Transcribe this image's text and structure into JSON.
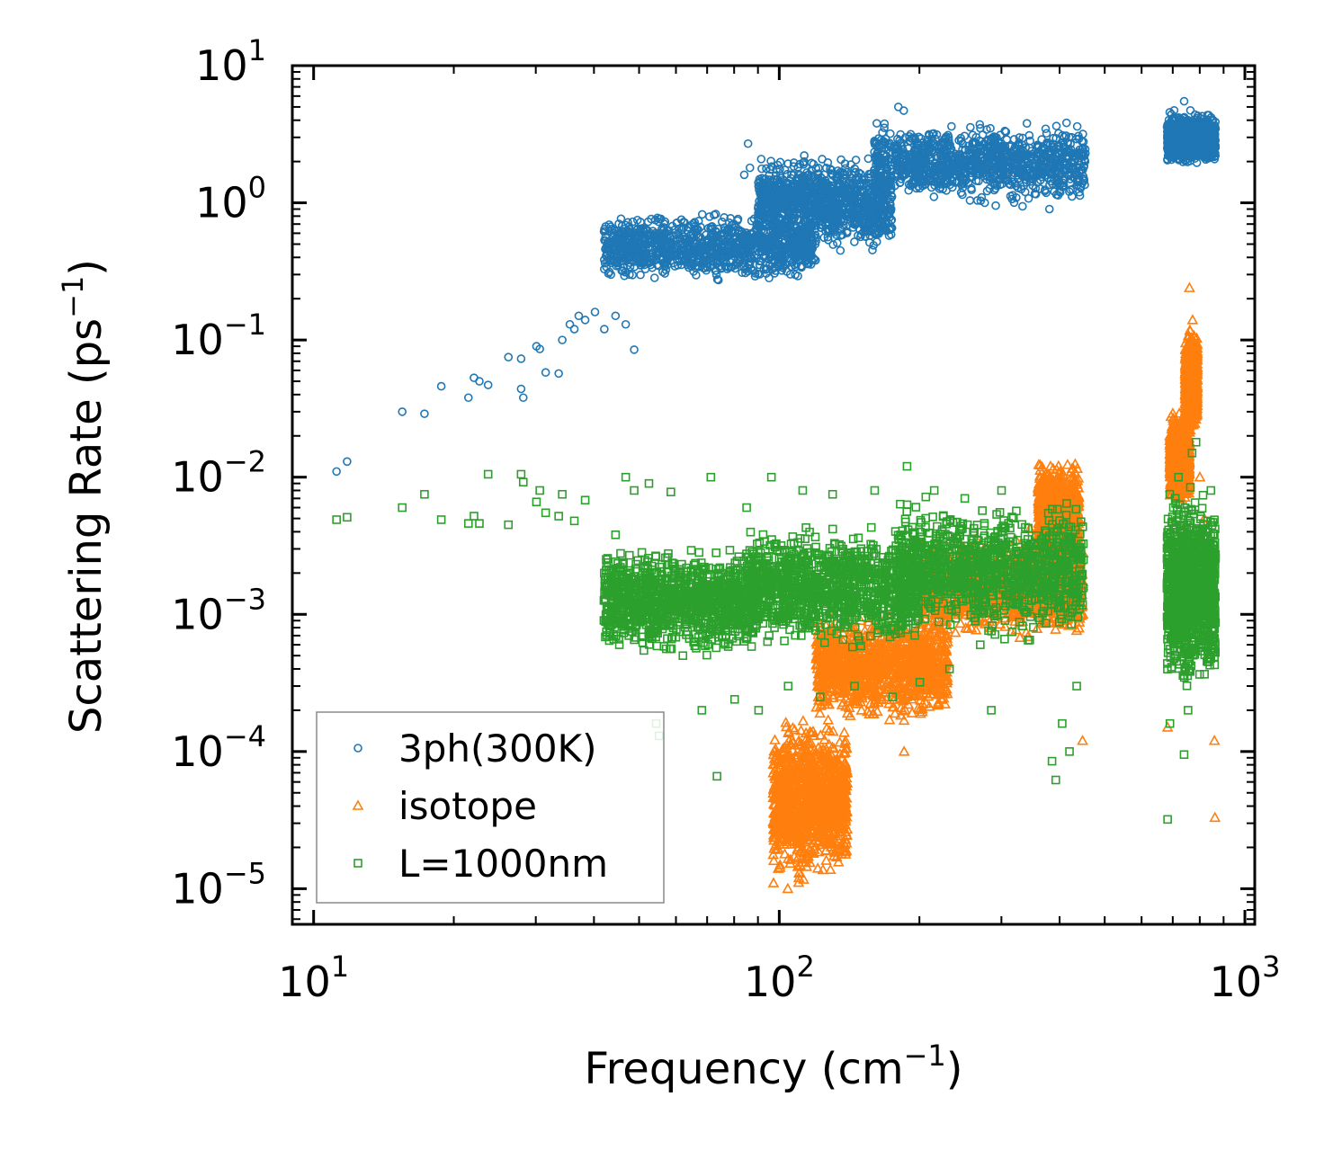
{
  "chart_data": {
    "type": "scatter",
    "xscale": "log",
    "yscale": "log",
    "xlim": [
      9,
      1050
    ],
    "ylim": [
      5.5e-06,
      10
    ],
    "xlabel": "Frequency (cm",
    "xlabel_sup": "−1",
    "xlabel_end": ")",
    "ylabel": "Scattering Rate (ps",
    "ylabel_sup": "−1",
    "ylabel_end": ")",
    "x_ticks": [
      {
        "value": 10,
        "base": "10",
        "exp": "1"
      },
      {
        "value": 100,
        "base": "10",
        "exp": "2"
      },
      {
        "value": 1000,
        "base": "10",
        "exp": "3"
      }
    ],
    "y_ticks": [
      {
        "value": 10,
        "base": "10",
        "exp": "1"
      },
      {
        "value": 1,
        "base": "10",
        "exp": "0"
      },
      {
        "value": 0.1,
        "base": "10",
        "exp": "−1"
      },
      {
        "value": 0.01,
        "base": "10",
        "exp": "−2"
      },
      {
        "value": 0.001,
        "base": "10",
        "exp": "−3"
      },
      {
        "value": 0.0001,
        "base": "10",
        "exp": "−4"
      },
      {
        "value": 1e-05,
        "base": "10",
        "exp": "−5"
      }
    ],
    "legend_position": "lower-left",
    "series": [
      {
        "name": "3ph(300K)",
        "color": "#1f77b4",
        "marker": "circle",
        "points": [
          [
            11.2,
            0.011
          ],
          [
            11.8,
            0.013
          ],
          [
            15.5,
            0.03
          ],
          [
            17.3,
            0.029
          ],
          [
            18.8,
            0.046
          ],
          [
            21.5,
            0.038
          ],
          [
            22.1,
            0.053
          ],
          [
            22.7,
            0.05
          ],
          [
            23.7,
            0.047
          ],
          [
            26.2,
            0.075
          ],
          [
            27.9,
            0.044
          ],
          [
            28.2,
            0.038
          ],
          [
            27.9,
            0.073
          ],
          [
            30.6,
            0.086
          ],
          [
            31.5,
            0.058
          ],
          [
            30.1,
            0.09
          ],
          [
            33.6,
            0.057
          ],
          [
            34.2,
            0.1
          ],
          [
            35.5,
            0.13
          ],
          [
            36.3,
            0.12
          ],
          [
            37.1,
            0.15
          ],
          [
            38.3,
            0.14
          ],
          [
            40.2,
            0.16
          ],
          [
            42.1,
            0.12
          ],
          [
            44.5,
            0.15
          ],
          [
            46.8,
            0.13
          ],
          [
            48.8,
            0.085
          ],
          [
            42.3,
            0.62
          ],
          [
            44.1,
            0.6
          ],
          [
            46.5,
            0.62
          ],
          [
            49.5,
            0.58
          ],
          [
            43.5,
            0.3
          ],
          [
            47.2,
            0.35
          ],
          [
            51.5,
            0.4
          ],
          [
            56.1,
            0.45
          ],
          [
            61.3,
            0.5
          ],
          [
            65.8,
            0.42
          ],
          [
            72.5,
            0.55
          ],
          [
            76.2,
            0.38
          ],
          [
            79.3,
            0.6
          ],
          [
            84.1,
            1.6
          ],
          [
            86.5,
            1.8
          ],
          [
            85.7,
            2.7
          ],
          [
            90.2,
            1.4
          ],
          [
            95.3,
            0.9
          ],
          [
            98.1,
            0.32
          ],
          [
            105.4,
            1.2
          ],
          [
            112.3,
            1.5
          ],
          [
            120.1,
            1.3
          ],
          [
            130.2,
            1.6
          ],
          [
            142.5,
            1.9
          ],
          [
            155.3,
            2.1
          ],
          [
            168.5,
            2.5
          ],
          [
            180.2,
            5.0
          ],
          [
            185.1,
            4.7
          ],
          [
            195.3,
            3.0
          ],
          [
            210.2,
            2.5
          ],
          [
            225.7,
            2.3
          ],
          [
            240.3,
            2.0
          ],
          [
            255.1,
            2.6
          ],
          [
            270.3,
            3.5
          ],
          [
            285.2,
            2.2
          ],
          [
            300.1,
            2.1
          ],
          [
            320.4,
            2.4
          ],
          [
            340.2,
            2.2
          ],
          [
            360.5,
            2.6
          ],
          [
            380.4,
            0.9
          ],
          [
            395.2,
            1.8
          ],
          [
            410.3,
            1.5
          ],
          [
            425.1,
            2.0
          ],
          [
            440.2,
            2.3
          ],
          [
            452.1,
            2.2
          ],
          [
            682.1,
            2.8
          ],
          [
            700.3,
            3.2
          ],
          [
            715.2,
            2.5
          ],
          [
            740.5,
            5.5
          ],
          [
            755.3,
            4.0
          ],
          [
            770.2,
            3.2
          ],
          [
            790.1,
            2.6
          ],
          [
            820.4,
            3.5
          ],
          [
            845.2,
            3.0
          ],
          [
            862.3,
            2.3
          ]
        ],
        "bands": [
          {
            "x": [
              42,
              120
            ],
            "y": [
              0.25,
              0.9
            ]
          },
          {
            "x": [
              90,
              175
            ],
            "y": [
              0.4,
              2.5
            ]
          },
          {
            "x": [
              160,
              455
            ],
            "y": [
              0.9,
              4.2
            ]
          },
          {
            "x": [
              680,
              865
            ],
            "y": [
              1.8,
              4.8
            ]
          }
        ]
      },
      {
        "name": "isotope",
        "color": "#ff7f0e",
        "marker": "triangle",
        "points": [
          [
            97.2,
            1.1e-05
          ],
          [
            99.5,
            1.4e-05
          ],
          [
            101.3,
            2.2e-05
          ],
          [
            103.1,
            3.1e-05
          ],
          [
            105.6,
            4.4e-05
          ],
          [
            108.2,
            6.2e-05
          ],
          [
            111.3,
            8.1e-05
          ],
          [
            114.5,
            0.0001
          ],
          [
            118.2,
            0.00014
          ],
          [
            122.3,
            0.00019
          ],
          [
            126.5,
            0.00025
          ],
          [
            131.2,
            0.00033
          ],
          [
            136.4,
            0.00041
          ],
          [
            142.3,
            0.0005
          ],
          [
            148.6,
            0.00062
          ],
          [
            155.3,
            0.0007
          ],
          [
            162.1,
            0.00085
          ],
          [
            170.2,
            0.001
          ],
          [
            178.4,
            0.0012
          ],
          [
            188.3,
            0.0013
          ],
          [
            198.2,
            0.0015
          ],
          [
            212.4,
            0.0018
          ],
          [
            228.3,
            0.0021
          ],
          [
            245.5,
            0.0024
          ],
          [
            262.1,
            0.0026
          ],
          [
            280.2,
            0.0028
          ],
          [
            300.5,
            0.0031
          ],
          [
            322.1,
            0.0035
          ],
          [
            345.2,
            0.0042
          ],
          [
            365.3,
            0.006
          ],
          [
            382.4,
            0.012
          ],
          [
            396.1,
            0.008
          ],
          [
            412.3,
            0.0055
          ],
          [
            430.2,
            0.002
          ],
          [
            448.1,
            0.00012
          ],
          [
            185.4,
            0.0001
          ],
          [
            172.5,
            0.00017
          ],
          [
            150.2,
            0.0002
          ],
          [
            140.1,
            0.00019
          ],
          [
            130.5,
            0.00014
          ],
          [
            126.2,
            3.8e-05
          ],
          [
            123.2,
            2.8e-05
          ],
          [
            116.2,
            1.9e-05
          ],
          [
            110.2,
            1.2e-05
          ],
          [
            104.3,
            1e-05
          ],
          [
            682.3,
            0.00015
          ],
          [
            695.2,
            0.0035
          ],
          [
            705.1,
            0.025
          ],
          [
            718.4,
            0.012
          ],
          [
            730.2,
            0.008
          ],
          [
            745.1,
            0.004
          ],
          [
            760.3,
            0.24
          ],
          [
            772.1,
            0.14
          ],
          [
            785.5,
            0.03
          ],
          [
            800.4,
            0.01
          ],
          [
            818.2,
            0.005
          ],
          [
            835.1,
            0.0012
          ],
          [
            850.3,
            0.0007
          ],
          [
            860.2,
            0.00012
          ],
          [
            862.4,
            3.3e-05
          ]
        ],
        "bands": [
          {
            "x": [
              97,
              140
            ],
            "y": [
              1e-05,
              0.0002
            ]
          },
          {
            "x": [
              120,
              230
            ],
            "y": [
              0.00015,
              0.0012
            ]
          },
          {
            "x": [
              200,
              450
            ],
            "y": [
              0.0006,
              0.004
            ]
          },
          {
            "x": [
              360,
              440
            ],
            "y": [
              0.002,
              0.014
            ]
          },
          {
            "x": [
              690,
              760
            ],
            "y": [
              0.006,
              0.03
            ]
          },
          {
            "x": [
              745,
              790
            ],
            "y": [
              0.02,
              0.13
            ]
          }
        ]
      },
      {
        "name": "L=1000nm",
        "color": "#2ca02c",
        "marker": "square",
        "points": [
          [
            11.2,
            0.0049
          ],
          [
            11.8,
            0.0051
          ],
          [
            15.5,
            0.006
          ],
          [
            17.3,
            0.0075
          ],
          [
            18.8,
            0.0049
          ],
          [
            21.5,
            0.0046
          ],
          [
            22.1,
            0.0052
          ],
          [
            22.7,
            0.0046
          ],
          [
            23.7,
            0.0105
          ],
          [
            26.2,
            0.0045
          ],
          [
            27.9,
            0.0105
          ],
          [
            28.2,
            0.0092
          ],
          [
            30.1,
            0.0066
          ],
          [
            30.6,
            0.008
          ],
          [
            31.5,
            0.0055
          ],
          [
            33.6,
            0.0052
          ],
          [
            34.2,
            0.0075
          ],
          [
            36.3,
            0.0048
          ],
          [
            38.3,
            0.0068
          ],
          [
            42.1,
            0.002
          ],
          [
            44.5,
            0.0038
          ],
          [
            46.8,
            0.01
          ],
          [
            48.8,
            0.008
          ],
          [
            52.5,
            0.009
          ],
          [
            54.4,
            0.00016
          ],
          [
            55.2,
            0.00013
          ],
          [
            58.5,
            0.0078
          ],
          [
            62.1,
            0.0005
          ],
          [
            68.2,
            0.0002
          ],
          [
            71.3,
            0.01
          ],
          [
            73.5,
            6.6e-05
          ],
          [
            80.2,
            0.00024
          ],
          [
            85.1,
            0.006
          ],
          [
            90.3,
            0.0002
          ],
          [
            96.2,
            0.01
          ],
          [
            104.5,
            0.0003
          ],
          [
            112.3,
            0.008
          ],
          [
            122.4,
            0.00025
          ],
          [
            130.2,
            0.0075
          ],
          [
            145.1,
            0.0003
          ],
          [
            160.3,
            0.008
          ],
          [
            175.2,
            0.00025
          ],
          [
            188.1,
            0.012
          ],
          [
            200.4,
            0.00032
          ],
          [
            215.2,
            0.008
          ],
          [
            232.1,
            0.0004
          ],
          [
            250.3,
            0.007
          ],
          [
            270.2,
            0.0006
          ],
          [
            285.4,
            0.0002
          ],
          [
            300.2,
            0.008
          ],
          [
            325.4,
            0.0012
          ],
          [
            345.1,
            0.00065
          ],
          [
            365.2,
            0.002
          ],
          [
            385.3,
            8.5e-05
          ],
          [
            392.5,
            6.2e-05
          ],
          [
            405.2,
            0.00016
          ],
          [
            420.1,
            0.0001
          ],
          [
            435.3,
            0.0003
          ],
          [
            450.2,
            0.0025
          ],
          [
            682.4,
            3.2e-05
          ],
          [
            690.3,
            0.00016
          ],
          [
            702.1,
            0.006
          ],
          [
            720.2,
            0.01
          ],
          [
            740.3,
            9.5e-05
          ],
          [
            755.1,
            0.0002
          ],
          [
            770.2,
            0.015
          ],
          [
            785.4,
            0.018
          ],
          [
            800.5,
            0.004
          ],
          [
            820.2,
            0.0015
          ],
          [
            845.3,
            0.008
          ],
          [
            860.1,
            0.003
          ]
        ],
        "bands": [
          {
            "x": [
              42,
              90
            ],
            "y": [
              0.00045,
              0.0035
            ]
          },
          {
            "x": [
              85,
              200
            ],
            "y": [
              0.0005,
              0.005
            ]
          },
          {
            "x": [
              180,
              450
            ],
            "y": [
              0.0006,
              0.0075
            ]
          },
          {
            "x": [
              680,
              865
            ],
            "y": [
              0.00025,
              0.009
            ]
          }
        ]
      }
    ]
  }
}
